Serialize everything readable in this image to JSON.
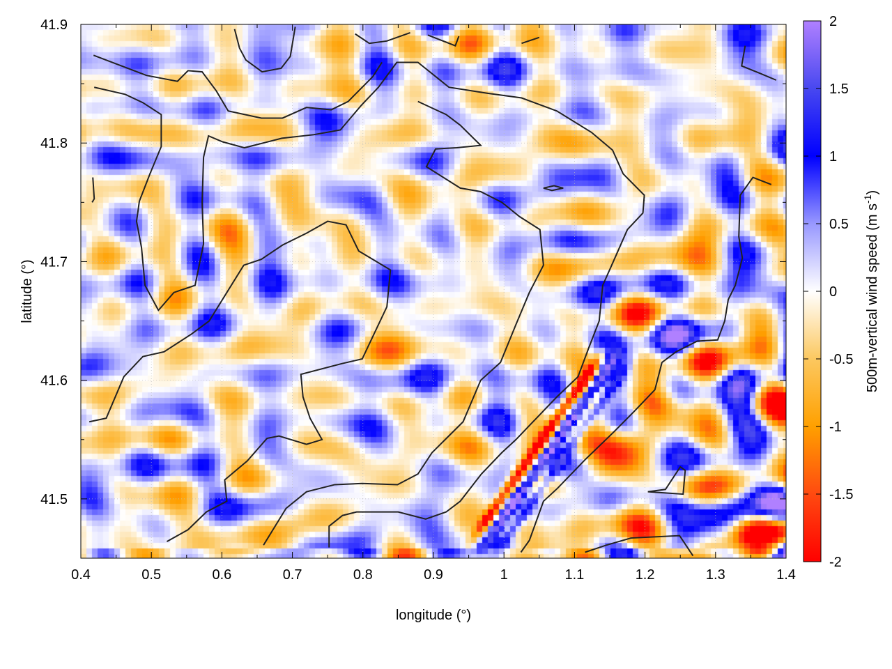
{
  "chart_data": {
    "type": "heatmap",
    "xlabel": "longitude (°)",
    "ylabel": "latitude (°)",
    "colorbar_label": "500m-vertical wind speed (m s",
    "colorbar_label_sup": "-1",
    "colorbar_label_end": ")",
    "xlim": [
      0.4,
      1.4
    ],
    "ylim": [
      41.45,
      41.9
    ],
    "zlim": [
      -2,
      2
    ],
    "xticks": [
      "0.4",
      "0.5",
      "0.6",
      "0.7",
      "0.8",
      "0.9",
      "1",
      "1.1",
      "1.2",
      "1.3",
      "1.4"
    ],
    "yticks": [
      "41.5",
      "41.6",
      "41.7",
      "41.8",
      "41.9"
    ],
    "cbticks": [
      "-2",
      "-1.5",
      "-1",
      "-0.5",
      "0",
      "0.5",
      "1",
      "1.5",
      "2"
    ],
    "grid": true,
    "palette": [
      {
        "z": -2,
        "color": "#ff0000"
      },
      {
        "z": -1.5,
        "color": "#ff4a10"
      },
      {
        "z": -1,
        "color": "#ffa000"
      },
      {
        "z": -0.5,
        "color": "#fcc860"
      },
      {
        "z": 0,
        "color": "#ffffff"
      },
      {
        "z": 0.5,
        "color": "#9898ff"
      },
      {
        "z": 1,
        "color": "#0000ff"
      },
      {
        "z": 1.5,
        "color": "#4848f0"
      },
      {
        "z": 2,
        "color": "#b080ff"
      }
    ],
    "contour_color": "#222222",
    "contours": [
      [
        [
          0.412,
          41.565
        ],
        [
          0.436,
          41.568
        ],
        [
          0.461,
          41.603
        ],
        [
          0.488,
          41.62
        ],
        [
          0.518,
          41.624
        ],
        [
          0.557,
          41.639
        ],
        [
          0.582,
          41.65
        ],
        [
          0.631,
          41.697
        ],
        [
          0.656,
          41.702
        ],
        [
          0.686,
          41.714
        ],
        [
          0.72,
          41.724
        ],
        [
          0.75,
          41.734
        ],
        [
          0.776,
          41.731
        ],
        [
          0.794,
          41.709
        ],
        [
          0.839,
          41.693
        ],
        [
          0.834,
          41.662
        ],
        [
          0.799,
          41.618
        ],
        [
          0.77,
          41.614
        ],
        [
          0.712,
          41.605
        ],
        [
          0.715,
          41.586
        ],
        [
          0.725,
          41.568
        ],
        [
          0.742,
          41.55
        ],
        [
          0.72,
          41.546
        ],
        [
          0.681,
          41.553
        ],
        [
          0.664,
          41.551
        ],
        [
          0.636,
          41.532
        ],
        [
          0.604,
          41.516
        ],
        [
          0.607,
          41.498
        ],
        [
          0.578,
          41.489
        ],
        [
          0.552,
          41.474
        ],
        [
          0.522,
          41.464
        ]
      ],
      [
        [
          0.419,
          41.847
        ],
        [
          0.463,
          41.841
        ],
        [
          0.488,
          41.834
        ],
        [
          0.514,
          41.824
        ],
        [
          0.514,
          41.797
        ],
        [
          0.498,
          41.774
        ],
        [
          0.483,
          41.751
        ],
        [
          0.479,
          41.734
        ],
        [
          0.486,
          41.712
        ],
        [
          0.491,
          41.68
        ],
        [
          0.51,
          41.659
        ],
        [
          0.532,
          41.674
        ],
        [
          0.562,
          41.68
        ],
        [
          0.574,
          41.715
        ],
        [
          0.572,
          41.75
        ],
        [
          0.574,
          41.788
        ],
        [
          0.581,
          41.806
        ],
        [
          0.601,
          41.801
        ],
        [
          0.632,
          41.796
        ],
        [
          0.685,
          41.804
        ],
        [
          0.73,
          41.807
        ],
        [
          0.768,
          41.811
        ],
        [
          0.798,
          41.832
        ],
        [
          0.822,
          41.847
        ],
        [
          0.848,
          41.868
        ],
        [
          0.878,
          41.868
        ],
        [
          0.922,
          41.847
        ],
        [
          0.976,
          41.842
        ],
        [
          1.025,
          41.838
        ],
        [
          1.075,
          41.827
        ],
        [
          1.124,
          41.809
        ],
        [
          1.154,
          41.794
        ],
        [
          1.169,
          41.774
        ],
        [
          1.199,
          41.756
        ],
        [
          1.197,
          41.741
        ],
        [
          1.175,
          41.727
        ],
        [
          1.155,
          41.7
        ],
        [
          1.14,
          41.68
        ],
        [
          1.135,
          41.65
        ],
        [
          1.12,
          41.627
        ],
        [
          1.105,
          41.603
        ],
        [
          1.075,
          41.586
        ],
        [
          1.046,
          41.568
        ],
        [
          1.017,
          41.55
        ],
        [
          0.997,
          41.539
        ],
        [
          0.968,
          41.521
        ],
        [
          0.938,
          41.498
        ],
        [
          0.918,
          41.489
        ],
        [
          0.889,
          41.483
        ],
        [
          0.85,
          41.489
        ],
        [
          0.791,
          41.489
        ],
        [
          0.771,
          41.486
        ],
        [
          0.752,
          41.477
        ],
        [
          0.752,
          41.459
        ]
      ],
      [
        [
          0.418,
          41.874
        ],
        [
          0.493,
          41.857
        ],
        [
          0.537,
          41.852
        ],
        [
          0.552,
          41.861
        ],
        [
          0.572,
          41.86
        ],
        [
          0.592,
          41.844
        ],
        [
          0.609,
          41.827
        ],
        [
          0.656,
          41.821
        ],
        [
          0.686,
          41.821
        ],
        [
          0.72,
          41.83
        ],
        [
          0.755,
          41.828
        ],
        [
          0.779,
          41.835
        ],
        [
          0.814,
          41.856
        ],
        [
          0.827,
          41.868
        ]
      ],
      [
        [
          0.878,
          41.835
        ],
        [
          0.918,
          41.824
        ],
        [
          0.938,
          41.815
        ],
        [
          0.967,
          41.798
        ],
        [
          0.933,
          41.796
        ],
        [
          0.903,
          41.795
        ],
        [
          0.89,
          41.78
        ],
        [
          0.938,
          41.762
        ],
        [
          0.967,
          41.759
        ],
        [
          0.997,
          41.75
        ],
        [
          1.022,
          41.738
        ],
        [
          1.051,
          41.727
        ],
        [
          1.056,
          41.697
        ],
        [
          1.036,
          41.674
        ],
        [
          1.017,
          41.647
        ],
        [
          0.995,
          41.615
        ],
        [
          0.967,
          41.6
        ],
        [
          0.942,
          41.565
        ],
        [
          0.898,
          41.539
        ],
        [
          0.878,
          41.521
        ],
        [
          0.849,
          41.512
        ],
        [
          0.799,
          41.513
        ],
        [
          0.76,
          41.512
        ],
        [
          0.72,
          41.506
        ],
        [
          0.691,
          41.492
        ],
        [
          0.659,
          41.461
        ]
      ],
      [
        [
          1.379,
          41.765
        ],
        [
          1.353,
          41.771
        ],
        [
          1.335,
          41.756
        ],
        [
          1.333,
          41.721
        ],
        [
          1.338,
          41.703
        ],
        [
          1.328,
          41.68
        ],
        [
          1.318,
          41.668
        ],
        [
          1.313,
          41.65
        ],
        [
          1.303,
          41.634
        ],
        [
          1.274,
          41.633
        ],
        [
          1.244,
          41.624
        ],
        [
          1.224,
          41.615
        ],
        [
          1.214,
          41.592
        ],
        [
          1.185,
          41.574
        ],
        [
          1.155,
          41.556
        ],
        [
          1.115,
          41.533
        ],
        [
          1.076,
          41.509
        ],
        [
          1.056,
          41.498
        ],
        [
          1.036,
          41.465
        ],
        [
          1.024,
          41.455
        ]
      ],
      [
        [
          1.342,
          41.882
        ],
        [
          1.337,
          41.865
        ],
        [
          1.362,
          41.859
        ],
        [
          1.386,
          41.853
        ]
      ],
      [
        [
          1.115,
          41.455
        ],
        [
          1.145,
          41.461
        ],
        [
          1.18,
          41.467
        ],
        [
          1.249,
          41.469
        ],
        [
          1.268,
          41.452
        ]
      ],
      [
        [
          1.204,
          41.506
        ],
        [
          1.254,
          41.504
        ],
        [
          1.257,
          41.524
        ],
        [
          1.25,
          41.527
        ],
        [
          1.229,
          41.508
        ],
        [
          1.204,
          41.506
        ]
      ],
      [
        [
          1.056,
          41.762
        ],
        [
          1.071,
          41.764
        ],
        [
          1.084,
          41.762
        ],
        [
          1.068,
          41.76
        ],
        [
          1.056,
          41.762
        ]
      ],
      [
        [
          0.618,
          41.896
        ],
        [
          0.625,
          41.88
        ],
        [
          0.634,
          41.87
        ],
        [
          0.657,
          41.86
        ],
        [
          0.684,
          41.863
        ],
        [
          0.697,
          41.873
        ],
        [
          0.704,
          41.898
        ]
      ],
      [
        [
          0.789,
          41.892
        ],
        [
          0.809,
          41.884
        ],
        [
          0.834,
          41.886
        ],
        [
          0.867,
          41.893
        ]
      ],
      [
        [
          0.892,
          41.891
        ],
        [
          0.931,
          41.882
        ],
        [
          0.936,
          41.89
        ]
      ],
      [
        [
          1.025,
          41.884
        ],
        [
          1.05,
          41.889
        ]
      ],
      [
        [
          0.417,
          41.771
        ],
        [
          0.419,
          41.753
        ],
        [
          0.416,
          41.75
        ]
      ]
    ]
  }
}
